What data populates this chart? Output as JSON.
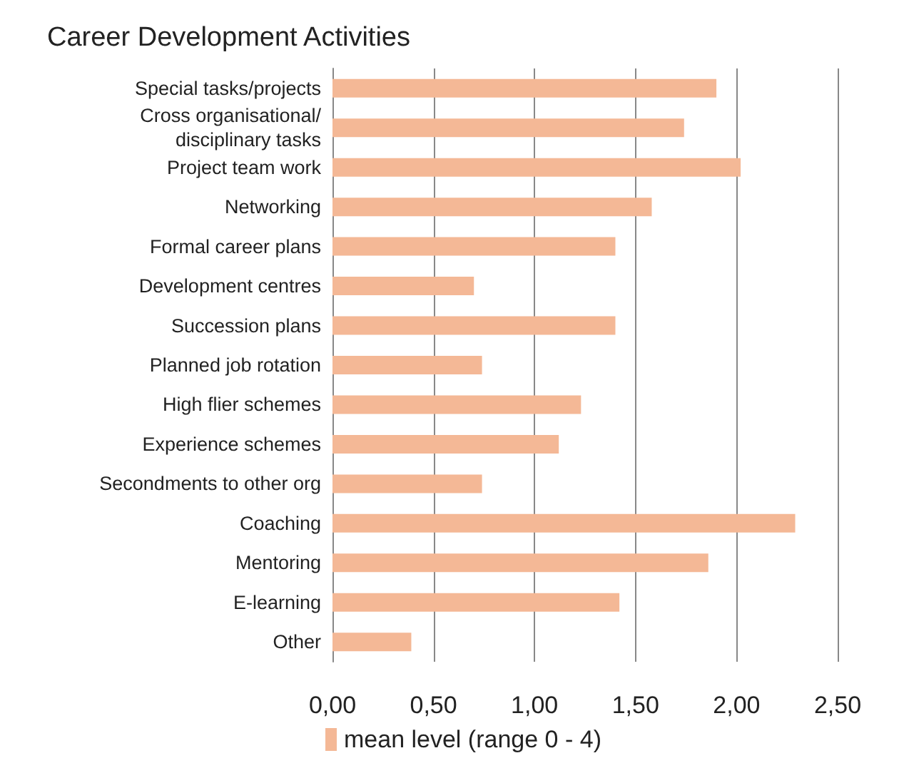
{
  "chart_data": {
    "type": "bar",
    "orientation": "horizontal",
    "title": "Career Development Activities",
    "categories": [
      "Special tasks/projects",
      "Cross organisational/\ndisciplinary tasks",
      "Project team work",
      "Networking",
      "Formal career plans",
      "Development centres",
      "Succession plans",
      "Planned job rotation",
      "High flier schemes",
      "Experience schemes",
      "Secondments to other org",
      "Coaching",
      "Mentoring",
      "E-learning",
      "Other"
    ],
    "series": [
      {
        "name": "mean level (range 0 - 4)",
        "color": "#f4b896",
        "values": [
          1.9,
          1.74,
          2.02,
          1.58,
          1.4,
          0.7,
          1.4,
          0.74,
          1.23,
          1.12,
          0.74,
          2.29,
          1.86,
          1.42,
          0.39
        ]
      }
    ],
    "xlim": [
      0,
      2.5
    ],
    "xticks": [
      {
        "value": 0,
        "label": "0,00"
      },
      {
        "value": 0.5,
        "label": "0,50"
      },
      {
        "value": 1,
        "label": "1,00"
      },
      {
        "value": 1.5,
        "label": "1,50"
      },
      {
        "value": 2,
        "label": "2,00"
      },
      {
        "value": 2.5,
        "label": "2,50"
      }
    ],
    "grid": "x",
    "legend": "bottom"
  }
}
